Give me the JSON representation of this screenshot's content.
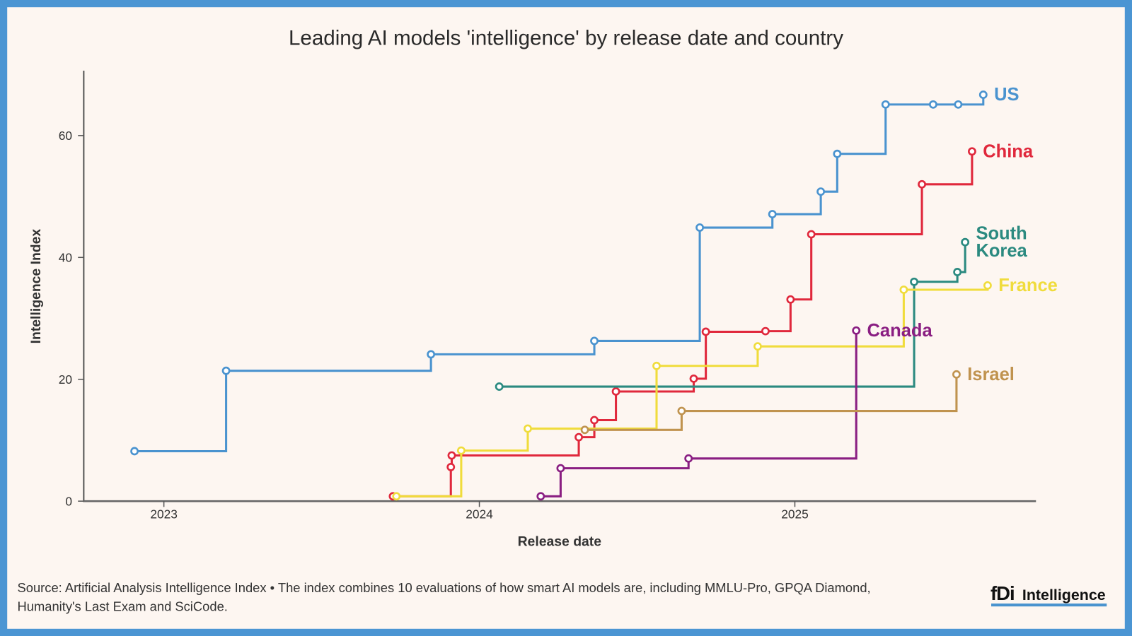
{
  "chart_data": {
    "type": "line",
    "step": "after",
    "title": "Leading AI models 'intelligence' by release date and country",
    "xlabel": "Release date",
    "ylabel": "Intelligence Index",
    "xlim": [
      "2022-10-15",
      "2025-09-25"
    ],
    "ylim": [
      0,
      70
    ],
    "x_ticks": [
      "2023",
      "2024",
      "2025"
    ],
    "y_ticks": [
      0,
      20,
      40,
      60
    ],
    "grid": false,
    "legend": "direct labels at line ends",
    "series": [
      {
        "name": "US",
        "color": "#4a93cf",
        "points": [
          [
            "2022-11-28",
            8.2
          ],
          [
            "2023-03-14",
            21.4
          ],
          [
            "2023-11-06",
            24.1
          ],
          [
            "2024-05-13",
            26.3
          ],
          [
            "2024-09-12",
            44.9
          ],
          [
            "2024-12-05",
            47.1
          ],
          [
            "2025-01-31",
            50.8
          ],
          [
            "2025-02-19",
            57.0
          ],
          [
            "2025-04-16",
            65.1
          ],
          [
            "2025-06-10",
            65.1
          ],
          [
            "2025-07-09",
            65.1
          ],
          [
            "2025-08-07",
            66.7
          ]
        ]
      },
      {
        "name": "China",
        "color": "#e0283c",
        "points": [
          [
            "2023-09-23",
            0.8
          ],
          [
            "2023-11-29",
            5.6
          ],
          [
            "2023-11-30",
            7.5
          ],
          [
            "2024-04-25",
            10.5
          ],
          [
            "2024-05-13",
            13.3
          ],
          [
            "2024-06-07",
            18.0
          ],
          [
            "2024-09-05",
            20.1
          ],
          [
            "2024-09-19",
            27.8
          ],
          [
            "2024-11-27",
            27.9
          ],
          [
            "2024-12-26",
            33.1
          ],
          [
            "2025-01-20",
            43.8
          ],
          [
            "2025-05-28",
            52.0
          ],
          [
            "2025-07-25",
            57.4
          ]
        ]
      },
      {
        "name": "South Korea",
        "color": "#2b8a80",
        "points": [
          [
            "2024-01-24",
            18.8
          ],
          [
            "2025-05-19",
            36.0
          ],
          [
            "2025-07-08",
            37.6
          ],
          [
            "2025-07-17",
            42.5
          ]
        ]
      },
      {
        "name": "France",
        "color": "#f0dc3c",
        "points": [
          [
            "2023-09-27",
            0.8
          ],
          [
            "2023-12-11",
            8.3
          ],
          [
            "2024-02-26",
            11.9
          ],
          [
            "2024-07-24",
            22.2
          ],
          [
            "2024-11-18",
            25.4
          ],
          [
            "2025-05-07",
            34.7
          ],
          [
            "2025-08-12",
            35.4
          ]
        ]
      },
      {
        "name": "Canada",
        "color": "#8a1e82",
        "points": [
          [
            "2024-03-12",
            0.8
          ],
          [
            "2024-04-04",
            5.4
          ],
          [
            "2024-08-30",
            7.0
          ],
          [
            "2025-03-13",
            28.0
          ]
        ]
      },
      {
        "name": "Israel",
        "color": "#c0934f",
        "points": [
          [
            "2024-05-02",
            11.7
          ],
          [
            "2024-08-22",
            14.8
          ],
          [
            "2025-07-07",
            20.8
          ]
        ]
      }
    ]
  },
  "footer": {
    "source_line1": "Source: Artificial Analysis Intelligence Index • The index combines 10 evaluations of how smart AI models are, including MMLU-Pro, GPQA Diamond,",
    "source_line2": "Humanity's Last Exam and SciCode.",
    "logo_text": "fDi Intelligence",
    "logo_color": "#4a93cf"
  }
}
